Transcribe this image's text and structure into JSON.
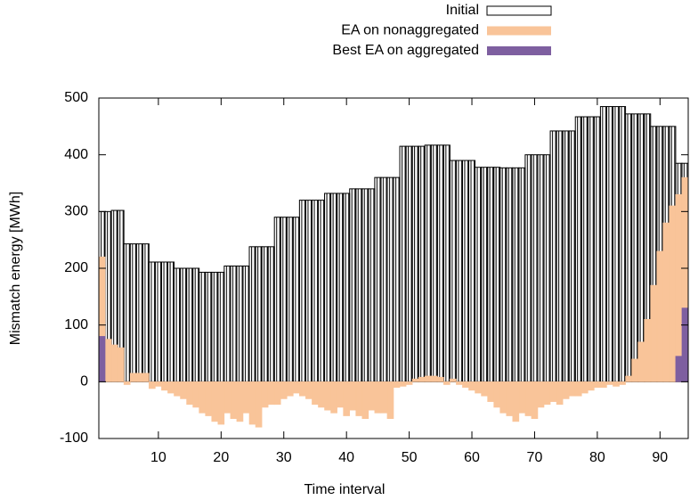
{
  "chart_data": {
    "type": "bar",
    "xlabel": "Time interval",
    "ylabel": "Mismatch energy [MWh]",
    "xlim": [
      0.5,
      94.5
    ],
    "xticks": [
      10,
      20,
      30,
      40,
      50,
      60,
      70,
      80,
      90
    ],
    "ylim": [
      -100,
      500
    ],
    "yticks": [
      -100,
      0,
      100,
      200,
      300,
      400,
      500
    ],
    "legend": "top-right",
    "x": [
      1,
      2,
      3,
      4,
      5,
      6,
      7,
      8,
      9,
      10,
      11,
      12,
      13,
      14,
      15,
      16,
      17,
      18,
      19,
      20,
      21,
      22,
      23,
      24,
      25,
      26,
      27,
      28,
      29,
      30,
      31,
      32,
      33,
      34,
      35,
      36,
      37,
      38,
      39,
      40,
      41,
      42,
      43,
      44,
      45,
      46,
      47,
      48,
      49,
      50,
      51,
      52,
      53,
      54,
      55,
      56,
      57,
      58,
      59,
      60,
      61,
      62,
      63,
      64,
      65,
      66,
      67,
      68,
      69,
      70,
      71,
      72,
      73,
      74,
      75,
      76,
      77,
      78,
      79,
      80,
      81,
      82,
      83,
      84,
      85,
      86,
      87,
      88,
      89,
      90,
      91,
      92,
      93,
      94
    ],
    "series": [
      {
        "name": "Initial",
        "color": "#000000",
        "style": "hatched",
        "values": [
          300,
          300,
          302,
          302,
          243,
          243,
          243,
          243,
          211,
          211,
          211,
          211,
          200,
          200,
          200,
          200,
          193,
          193,
          193,
          193,
          204,
          204,
          204,
          204,
          238,
          238,
          238,
          238,
          290,
          290,
          290,
          290,
          320,
          320,
          320,
          320,
          332,
          332,
          332,
          332,
          340,
          340,
          340,
          340,
          360,
          360,
          360,
          360,
          415,
          415,
          415,
          415,
          417,
          417,
          417,
          417,
          390,
          390,
          390,
          390,
          378,
          378,
          378,
          378,
          377,
          377,
          377,
          377,
          400,
          400,
          400,
          400,
          442,
          442,
          442,
          442,
          467,
          467,
          467,
          467,
          485,
          485,
          485,
          485,
          472,
          472,
          472,
          472,
          450,
          450,
          450,
          450,
          385,
          385
        ]
      },
      {
        "name": "EA on nonaggregated",
        "color": "#f9c499",
        "style": "solid",
        "values": [
          220,
          75,
          65,
          60,
          -5,
          15,
          15,
          15,
          -12,
          -8,
          -15,
          -20,
          -25,
          -30,
          -40,
          -45,
          -55,
          -60,
          -70,
          -75,
          -55,
          -65,
          -70,
          -55,
          -75,
          -80,
          -45,
          -40,
          -40,
          -30,
          -25,
          -20,
          -25,
          -30,
          -40,
          -45,
          -50,
          -55,
          -45,
          -60,
          -50,
          -60,
          -65,
          -50,
          -55,
          -55,
          -65,
          -10,
          -8,
          -5,
          5,
          8,
          10,
          10,
          8,
          -5,
          5,
          -5,
          -10,
          -15,
          -20,
          -25,
          -35,
          -45,
          -55,
          -60,
          -70,
          -55,
          -60,
          -65,
          -45,
          -40,
          -35,
          -40,
          -30,
          -25,
          -25,
          -20,
          -15,
          -10,
          -10,
          -5,
          -8,
          -5,
          10,
          40,
          70,
          110,
          170,
          230,
          280,
          310,
          330,
          360
        ]
      },
      {
        "name": "Best EA on aggregated",
        "color": "#7e5fa0",
        "style": "solid",
        "values": [
          80,
          0,
          0,
          0,
          0,
          0,
          0,
          0,
          0,
          0,
          0,
          0,
          0,
          0,
          0,
          0,
          0,
          0,
          0,
          0,
          0,
          0,
          0,
          0,
          0,
          0,
          0,
          0,
          0,
          0,
          0,
          0,
          0,
          0,
          0,
          0,
          0,
          0,
          0,
          0,
          0,
          0,
          0,
          0,
          0,
          0,
          0,
          0,
          0,
          0,
          0,
          0,
          0,
          0,
          0,
          0,
          0,
          0,
          0,
          0,
          0,
          0,
          0,
          0,
          0,
          0,
          0,
          0,
          0,
          0,
          0,
          0,
          0,
          0,
          0,
          0,
          0,
          0,
          0,
          0,
          0,
          0,
          0,
          0,
          0,
          0,
          0,
          0,
          0,
          0,
          0,
          0,
          45,
          130
        ]
      }
    ]
  }
}
